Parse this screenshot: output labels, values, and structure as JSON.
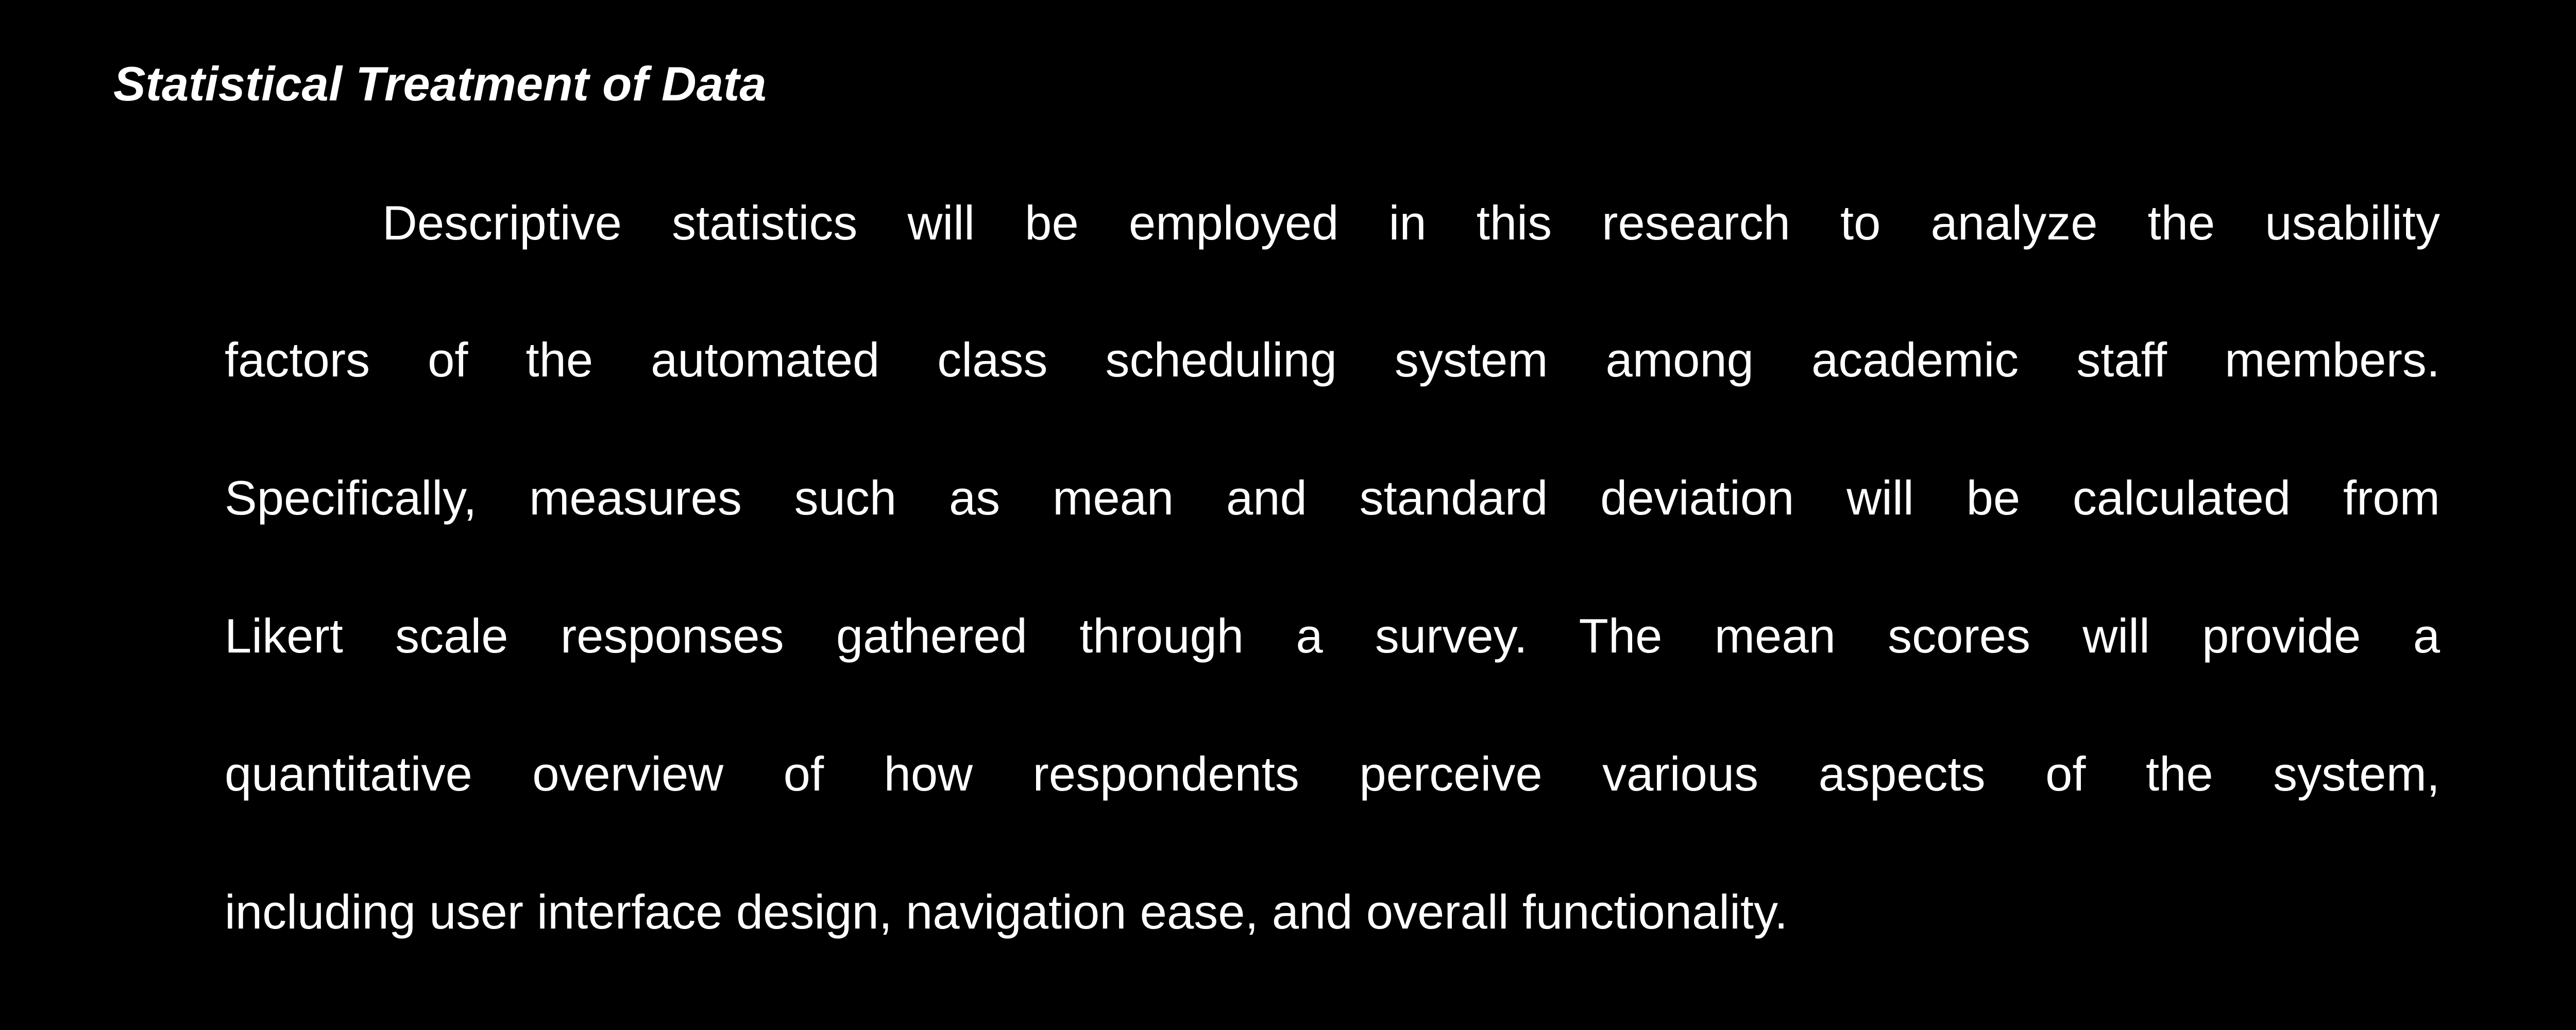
{
  "document": {
    "heading": "Statistical Treatment of Data",
    "paragraph_lines": [
      "Descriptive statistics will be employed in this research to analyze the usability",
      "factors of the automated class scheduling system among academic staff members.",
      "Specifically, measures such as mean and standard deviation will be calculated from",
      "Likert scale responses gathered through a survey. The mean scores will provide a",
      "quantitative overview of how respondents perceive various aspects of the system,",
      "including user interface design, navigation ease, and overall functionality."
    ]
  },
  "colors": {
    "background": "#000000",
    "text": "#ffffff"
  }
}
